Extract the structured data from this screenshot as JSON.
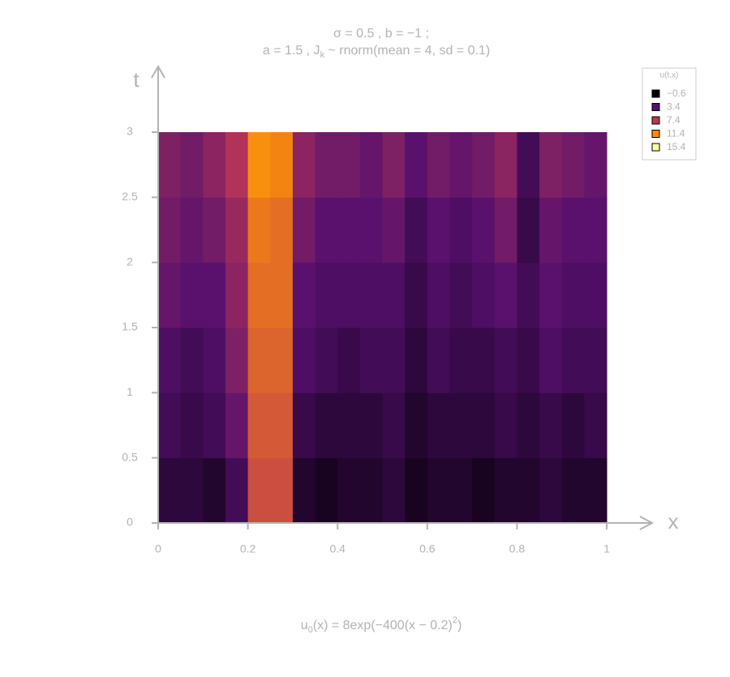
{
  "chart_data": {
    "type": "heatmap",
    "title": "σ = 0.5 , b = −1 ;",
    "subtitle": [
      "a = 1.5 , J",
      "k",
      " ~ rnorm(mean = 4, sd = 0.1)"
    ],
    "caption": [
      "u",
      "0",
      "(x) = 8exp(−400(x − 0.2)",
      "2",
      ")"
    ],
    "xlabel": "x",
    "ylabel": "t",
    "xbins": [
      0,
      0.05,
      0.1,
      0.15,
      0.2,
      0.25,
      0.3,
      0.35,
      0.4,
      0.45,
      0.5,
      0.55,
      0.6,
      0.65,
      0.7,
      0.75,
      0.8,
      0.85,
      0.9,
      0.95,
      1
    ],
    "tbins": [
      0,
      0.5,
      1,
      1.5,
      2,
      2.5,
      3
    ],
    "z": [
      [
        1.5,
        1.5,
        1.0,
        2.5,
        8.5,
        8.5,
        1.0,
        0.5,
        1.0,
        1.0,
        1.5,
        0.5,
        1.0,
        1.0,
        0.5,
        1.0,
        1.0,
        1.5,
        1.0,
        1.0
      ],
      [
        2.5,
        2.0,
        2.5,
        4.0,
        9.0,
        9.0,
        2.0,
        1.5,
        1.5,
        1.5,
        2.0,
        1.0,
        1.5,
        1.5,
        1.5,
        2.0,
        1.5,
        2.0,
        1.5,
        2.0
      ],
      [
        3.0,
        2.5,
        3.0,
        5.0,
        9.5,
        9.5,
        3.0,
        2.5,
        2.0,
        2.5,
        2.5,
        1.5,
        2.5,
        2.0,
        2.0,
        2.5,
        2.0,
        3.0,
        2.5,
        2.5
      ],
      [
        4.0,
        3.5,
        3.5,
        5.5,
        10.0,
        10.0,
        3.5,
        3.0,
        3.0,
        3.0,
        3.0,
        2.0,
        3.0,
        2.5,
        3.0,
        3.5,
        2.5,
        3.5,
        3.0,
        3.0
      ],
      [
        4.5,
        4.0,
        4.5,
        6.0,
        10.5,
        10.0,
        4.5,
        3.5,
        3.5,
        3.5,
        4.0,
        2.5,
        3.5,
        3.0,
        3.5,
        4.5,
        2.0,
        4.0,
        3.5,
        3.5
      ],
      [
        5.0,
        4.5,
        5.5,
        7.0,
        11.5,
        11.0,
        5.5,
        4.5,
        4.5,
        4.0,
        5.0,
        3.5,
        4.5,
        4.0,
        4.5,
        5.5,
        2.5,
        5.0,
        4.5,
        4.0
      ]
    ],
    "xlim": [
      0,
      1
    ],
    "ylim": [
      0,
      3
    ],
    "xticks": [
      0,
      0.2,
      0.4,
      0.6,
      0.8,
      1
    ],
    "yticks": [
      0,
      0.5,
      1,
      1.5,
      2,
      2.5,
      3
    ],
    "legend": {
      "title": "u(t,x)",
      "position": "top-right",
      "levels": [
        {
          "value": -0.6,
          "label": "−0.6"
        },
        3.4,
        7.4,
        11.4,
        15.4
      ],
      "colors": [
        "#000004",
        "#56106e",
        "#bb3754",
        "#f98c0a",
        "#fcffa4"
      ]
    }
  }
}
